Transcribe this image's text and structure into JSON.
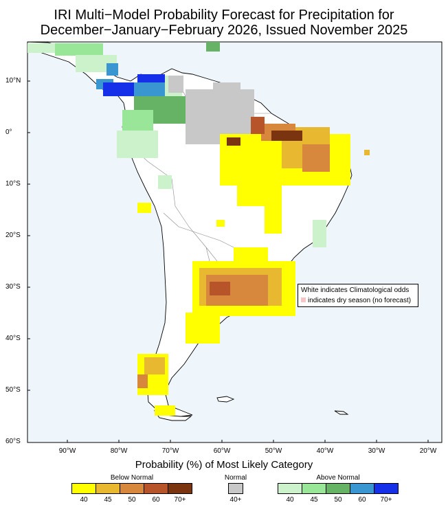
{
  "title": {
    "line1": "IRI Multi−Model Probability Forecast for Precipitation for",
    "line2": "December−January−February 2026, Issued November 2025"
  },
  "axes": {
    "lat_labels": [
      "10°N",
      "0°",
      "10°S",
      "20°S",
      "30°S",
      "40°S",
      "50°S",
      "60°S"
    ],
    "lon_labels": [
      "90°W",
      "80°W",
      "70°W",
      "60°W",
      "50°W",
      "40°W",
      "30°W",
      "20°W"
    ]
  },
  "note": {
    "line1": "White indicates Climatological odds",
    "line2": "indicates dry season (no forecast)"
  },
  "legend": {
    "title": "Probability (%) of Most Likely Category",
    "below": {
      "label": "Below Normal",
      "ticks": [
        "40",
        "45",
        "50",
        "60",
        "70+"
      ],
      "colors": [
        "#ffff00",
        "#e8b830",
        "#d8883c",
        "#b8542a",
        "#7a3510"
      ]
    },
    "normal": {
      "label": "Normal",
      "tick": "40+",
      "color": "#c8c8c8"
    },
    "above": {
      "label": "Above Normal",
      "ticks": [
        "40",
        "45",
        "50",
        "60",
        "70+"
      ],
      "colors": [
        "#ccf2cc",
        "#99e699",
        "#66b366",
        "#3a96d0",
        "#1530e8"
      ]
    }
  },
  "colors": {
    "ocean": "#eef6fc",
    "land": "#ffffff",
    "dry": "#f6c6c6"
  }
}
